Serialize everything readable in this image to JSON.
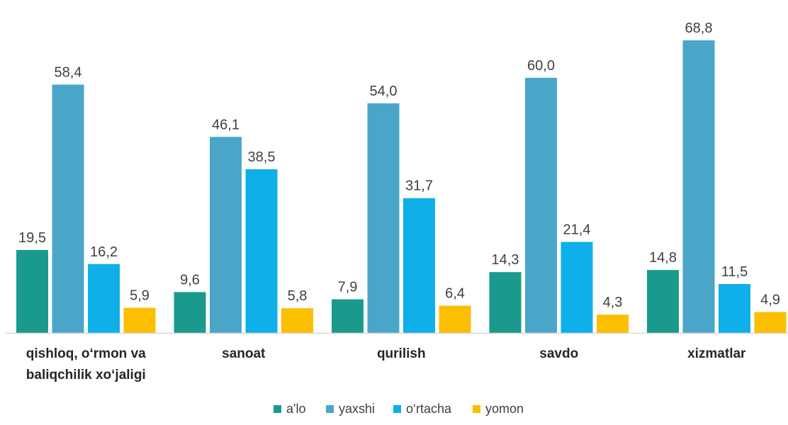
{
  "chart_data": {
    "type": "bar",
    "categories": [
      [
        "qishloq, o‘rmon va",
        "baliqchilik xo‘jaligi"
      ],
      [
        "sanoat"
      ],
      [
        "qurilish"
      ],
      [
        "savdo"
      ],
      [
        "xizmatlar"
      ]
    ],
    "series": [
      {
        "name": "a'lo",
        "color": "#1a9a8c",
        "values": [
          19.5,
          9.6,
          7.9,
          14.3,
          14.8
        ],
        "labels": [
          "19,5",
          "9,6",
          "7,9",
          "14,3",
          "14,8"
        ]
      },
      {
        "name": "yaxshi",
        "color": "#4aa6c8",
        "values": [
          58.4,
          46.1,
          54.0,
          60.0,
          68.8
        ],
        "labels": [
          "58,4",
          "46,1",
          "54,0",
          "60,0",
          "68,8"
        ]
      },
      {
        "name": "o‘rtacha",
        "color": "#0fb0ea",
        "values": [
          16.2,
          38.5,
          31.7,
          21.4,
          11.5
        ],
        "labels": [
          "16,2",
          "38,5",
          "31,7",
          "21,4",
          "11,5"
        ]
      },
      {
        "name": "yomon",
        "color": "#fbbf00",
        "values": [
          5.9,
          5.8,
          6.4,
          4.3,
          4.9
        ],
        "labels": [
          "5,9",
          "5,8",
          "6,4",
          "4,3",
          "4,9"
        ]
      }
    ],
    "title": "",
    "xlabel": "",
    "ylabel": "",
    "ylim": [
      0,
      68.8
    ],
    "grid": false,
    "legend_position": "bottom",
    "axis_color": "#d9d9d9"
  }
}
